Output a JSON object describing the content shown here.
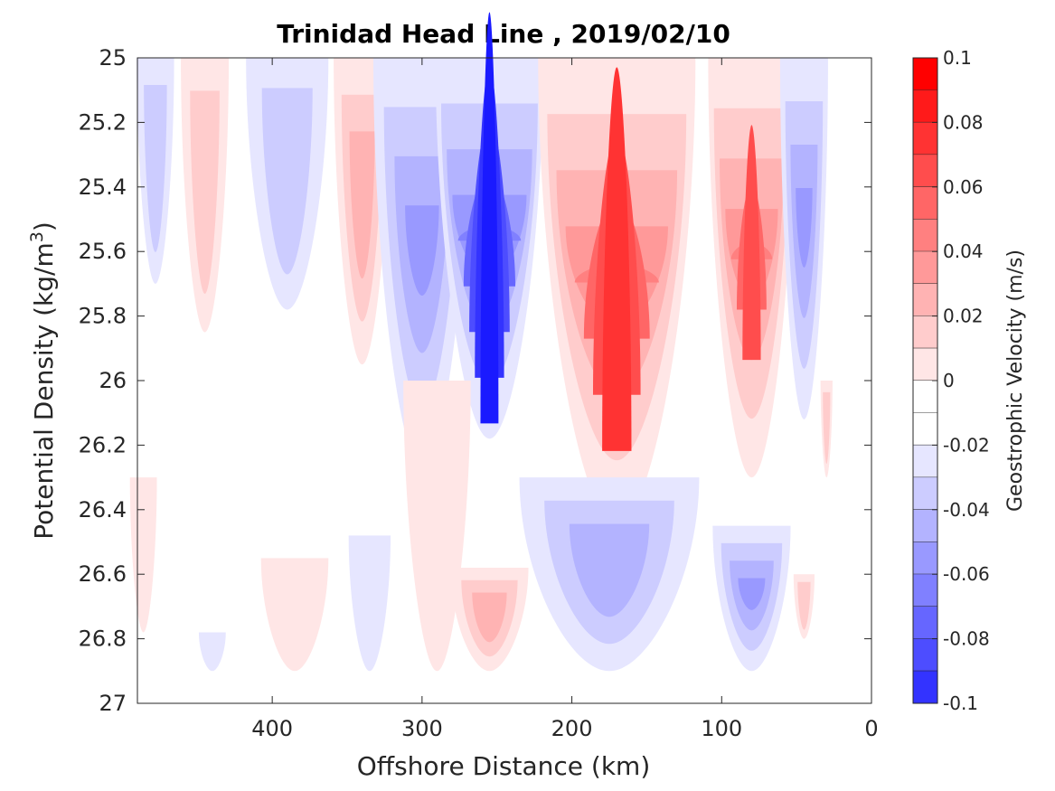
{
  "chart_data": {
    "type": "contour",
    "title": "Trinidad Head Line , 2019/02/10",
    "xlabel": "Offshore Distance (km)",
    "ylabel": "Potential Density (kg/m",
    "ylabel_sup": "3",
    "ylabel_close": ")",
    "colorbar_label": "Geostrophic Velocity (m/s)",
    "xlim": [
      490,
      0
    ],
    "x_reversed": true,
    "ylim": [
      25,
      27
    ],
    "y_reversed": true,
    "x_ticks": [
      400,
      300,
      200,
      100,
      0
    ],
    "x_tick_labels": [
      "400",
      "300",
      "200",
      "100",
      "0"
    ],
    "y_ticks": [
      25,
      25.2,
      25.4,
      25.6,
      25.8,
      26,
      26.2,
      26.4,
      26.6,
      26.8,
      27
    ],
    "y_tick_labels": [
      "25",
      "25.2",
      "25.4",
      "25.6",
      "25.8",
      "26",
      "26.2",
      "26.4",
      "26.6",
      "26.8",
      "27"
    ],
    "colorbar_ticks": [
      0.1,
      0.08,
      0.06,
      0.04,
      0.02,
      0,
      -0.02,
      -0.04,
      -0.06,
      -0.08,
      -0.1
    ],
    "colorbar_tick_labels": [
      "0.1",
      "0.08",
      "0.06",
      "0.04",
      "0.02",
      "0",
      "-0.02",
      "-0.04",
      "-0.06",
      "-0.08",
      "-0.1"
    ],
    "color_levels": [
      {
        "min": 0.09,
        "max": 0.1,
        "color": "#ff0000"
      },
      {
        "min": 0.08,
        "max": 0.09,
        "color": "#ff1a1a"
      },
      {
        "min": 0.07,
        "max": 0.08,
        "color": "#ff3333"
      },
      {
        "min": 0.06,
        "max": 0.07,
        "color": "#ff4d4d"
      },
      {
        "min": 0.05,
        "max": 0.06,
        "color": "#ff6666"
      },
      {
        "min": 0.04,
        "max": 0.05,
        "color": "#ff8080"
      },
      {
        "min": 0.03,
        "max": 0.04,
        "color": "#ff9999"
      },
      {
        "min": 0.02,
        "max": 0.03,
        "color": "#ffb3b3"
      },
      {
        "min": 0.01,
        "max": 0.02,
        "color": "#ffcccc"
      },
      {
        "min": 0.0,
        "max": 0.01,
        "color": "#ffe6e6"
      },
      {
        "min": -0.01,
        "max": 0.0,
        "color": "#ffffff"
      },
      {
        "min": -0.02,
        "max": -0.01,
        "color": "#ffffff"
      },
      {
        "min": -0.03,
        "max": -0.02,
        "color": "#e6e6ff"
      },
      {
        "min": -0.04,
        "max": -0.03,
        "color": "#ccccff"
      },
      {
        "min": -0.05,
        "max": -0.04,
        "color": "#b3b3ff"
      },
      {
        "min": -0.06,
        "max": -0.05,
        "color": "#9999ff"
      },
      {
        "min": -0.07,
        "max": -0.06,
        "color": "#8080ff"
      },
      {
        "min": -0.08,
        "max": -0.07,
        "color": "#6666ff"
      },
      {
        "min": -0.09,
        "max": -0.08,
        "color": "#4d4dff"
      },
      {
        "min": -0.1,
        "max": -0.09,
        "color": "#3333ff"
      }
    ],
    "features": [
      {
        "name": "blue-core-480km",
        "sign": "negative",
        "x": 478,
        "y_top": 25.0,
        "y_bottom": 25.7,
        "width": 25,
        "peak": -0.03,
        "max_level": 2
      },
      {
        "name": "red-core-445km",
        "sign": "positive",
        "x": 445,
        "y_top": 25.0,
        "y_bottom": 25.85,
        "width": 32,
        "peak": 0.03,
        "max_level": 2
      },
      {
        "name": "blue-core-395km",
        "sign": "negative",
        "x": 390,
        "y_top": 25.0,
        "y_bottom": 25.78,
        "width": 55,
        "peak": -0.03,
        "max_level": 2
      },
      {
        "name": "red-core-340km",
        "sign": "positive",
        "x": 340,
        "y_top": 25.0,
        "y_bottom": 25.95,
        "width": 38,
        "peak": 0.03,
        "max_level": 3
      },
      {
        "name": "blue-core-300km",
        "sign": "negative",
        "x": 300,
        "y_top": 25.0,
        "y_bottom": 26.27,
        "width": 65,
        "peak": -0.045,
        "max_level": 4
      },
      {
        "name": "blue-core-255km",
        "sign": "negative",
        "x": 255,
        "y_top": 25.0,
        "y_bottom": 26.18,
        "width": 72,
        "peak": -0.1,
        "max_level": 9
      },
      {
        "name": "red-core-170km",
        "sign": "positive",
        "x": 170,
        "y_top": 25.0,
        "y_bottom": 26.45,
        "width": 105,
        "peak": 0.09,
        "max_level": 8
      },
      {
        "name": "red-core-80km",
        "sign": "positive",
        "x": 80,
        "y_top": 25.0,
        "y_bottom": 26.3,
        "width": 58,
        "peak": 0.08,
        "max_level": 7
      },
      {
        "name": "blue-core-45km",
        "sign": "negative",
        "x": 45,
        "y_top": 25.0,
        "y_bottom": 26.12,
        "width": 32,
        "peak": -0.045,
        "max_level": 4
      },
      {
        "name": "red-patch-485km-deep",
        "sign": "positive",
        "x": 486,
        "y_top": 26.3,
        "y_bottom": 26.78,
        "width": 18,
        "peak": 0.01,
        "max_level": 1
      },
      {
        "name": "blue-patch-440km-deep",
        "sign": "negative",
        "x": 440,
        "y_top": 26.78,
        "y_bottom": 26.9,
        "width": 18,
        "peak": -0.02,
        "max_level": 1
      },
      {
        "name": "red-patch-385km-deep",
        "sign": "positive",
        "x": 385,
        "y_top": 26.55,
        "y_bottom": 26.9,
        "width": 45,
        "peak": 0.015,
        "max_level": 1
      },
      {
        "name": "blue-patch-335km-deep",
        "sign": "negative",
        "x": 335,
        "y_top": 26.48,
        "y_bottom": 26.9,
        "width": 28,
        "peak": -0.02,
        "max_level": 1
      },
      {
        "name": "red-patch-295km",
        "sign": "positive",
        "x": 290,
        "y_top": 26.0,
        "y_bottom": 26.9,
        "width": 45,
        "peak": 0.02,
        "max_level": 1
      },
      {
        "name": "red-core-255km-deep",
        "sign": "positive",
        "x": 255,
        "y_top": 26.58,
        "y_bottom": 26.9,
        "width": 52,
        "peak": 0.04,
        "max_level": 3
      },
      {
        "name": "blue-core-175km-deep",
        "sign": "negative",
        "x": 175,
        "y_top": 26.3,
        "y_bottom": 26.9,
        "width": 120,
        "peak": -0.035,
        "max_level": 3
      },
      {
        "name": "blue-core-80km-deep",
        "sign": "negative",
        "x": 80,
        "y_top": 26.45,
        "y_bottom": 26.9,
        "width": 52,
        "peak": -0.05,
        "max_level": 4
      },
      {
        "name": "red-patch-45km-deep",
        "sign": "positive",
        "x": 45,
        "y_top": 26.6,
        "y_bottom": 26.8,
        "width": 14,
        "peak": 0.02,
        "max_level": 2
      },
      {
        "name": "red-patch-30km",
        "sign": "positive",
        "x": 30,
        "y_top": 26.0,
        "y_bottom": 26.3,
        "width": 8,
        "peak": 0.02,
        "max_level": 2
      }
    ]
  }
}
